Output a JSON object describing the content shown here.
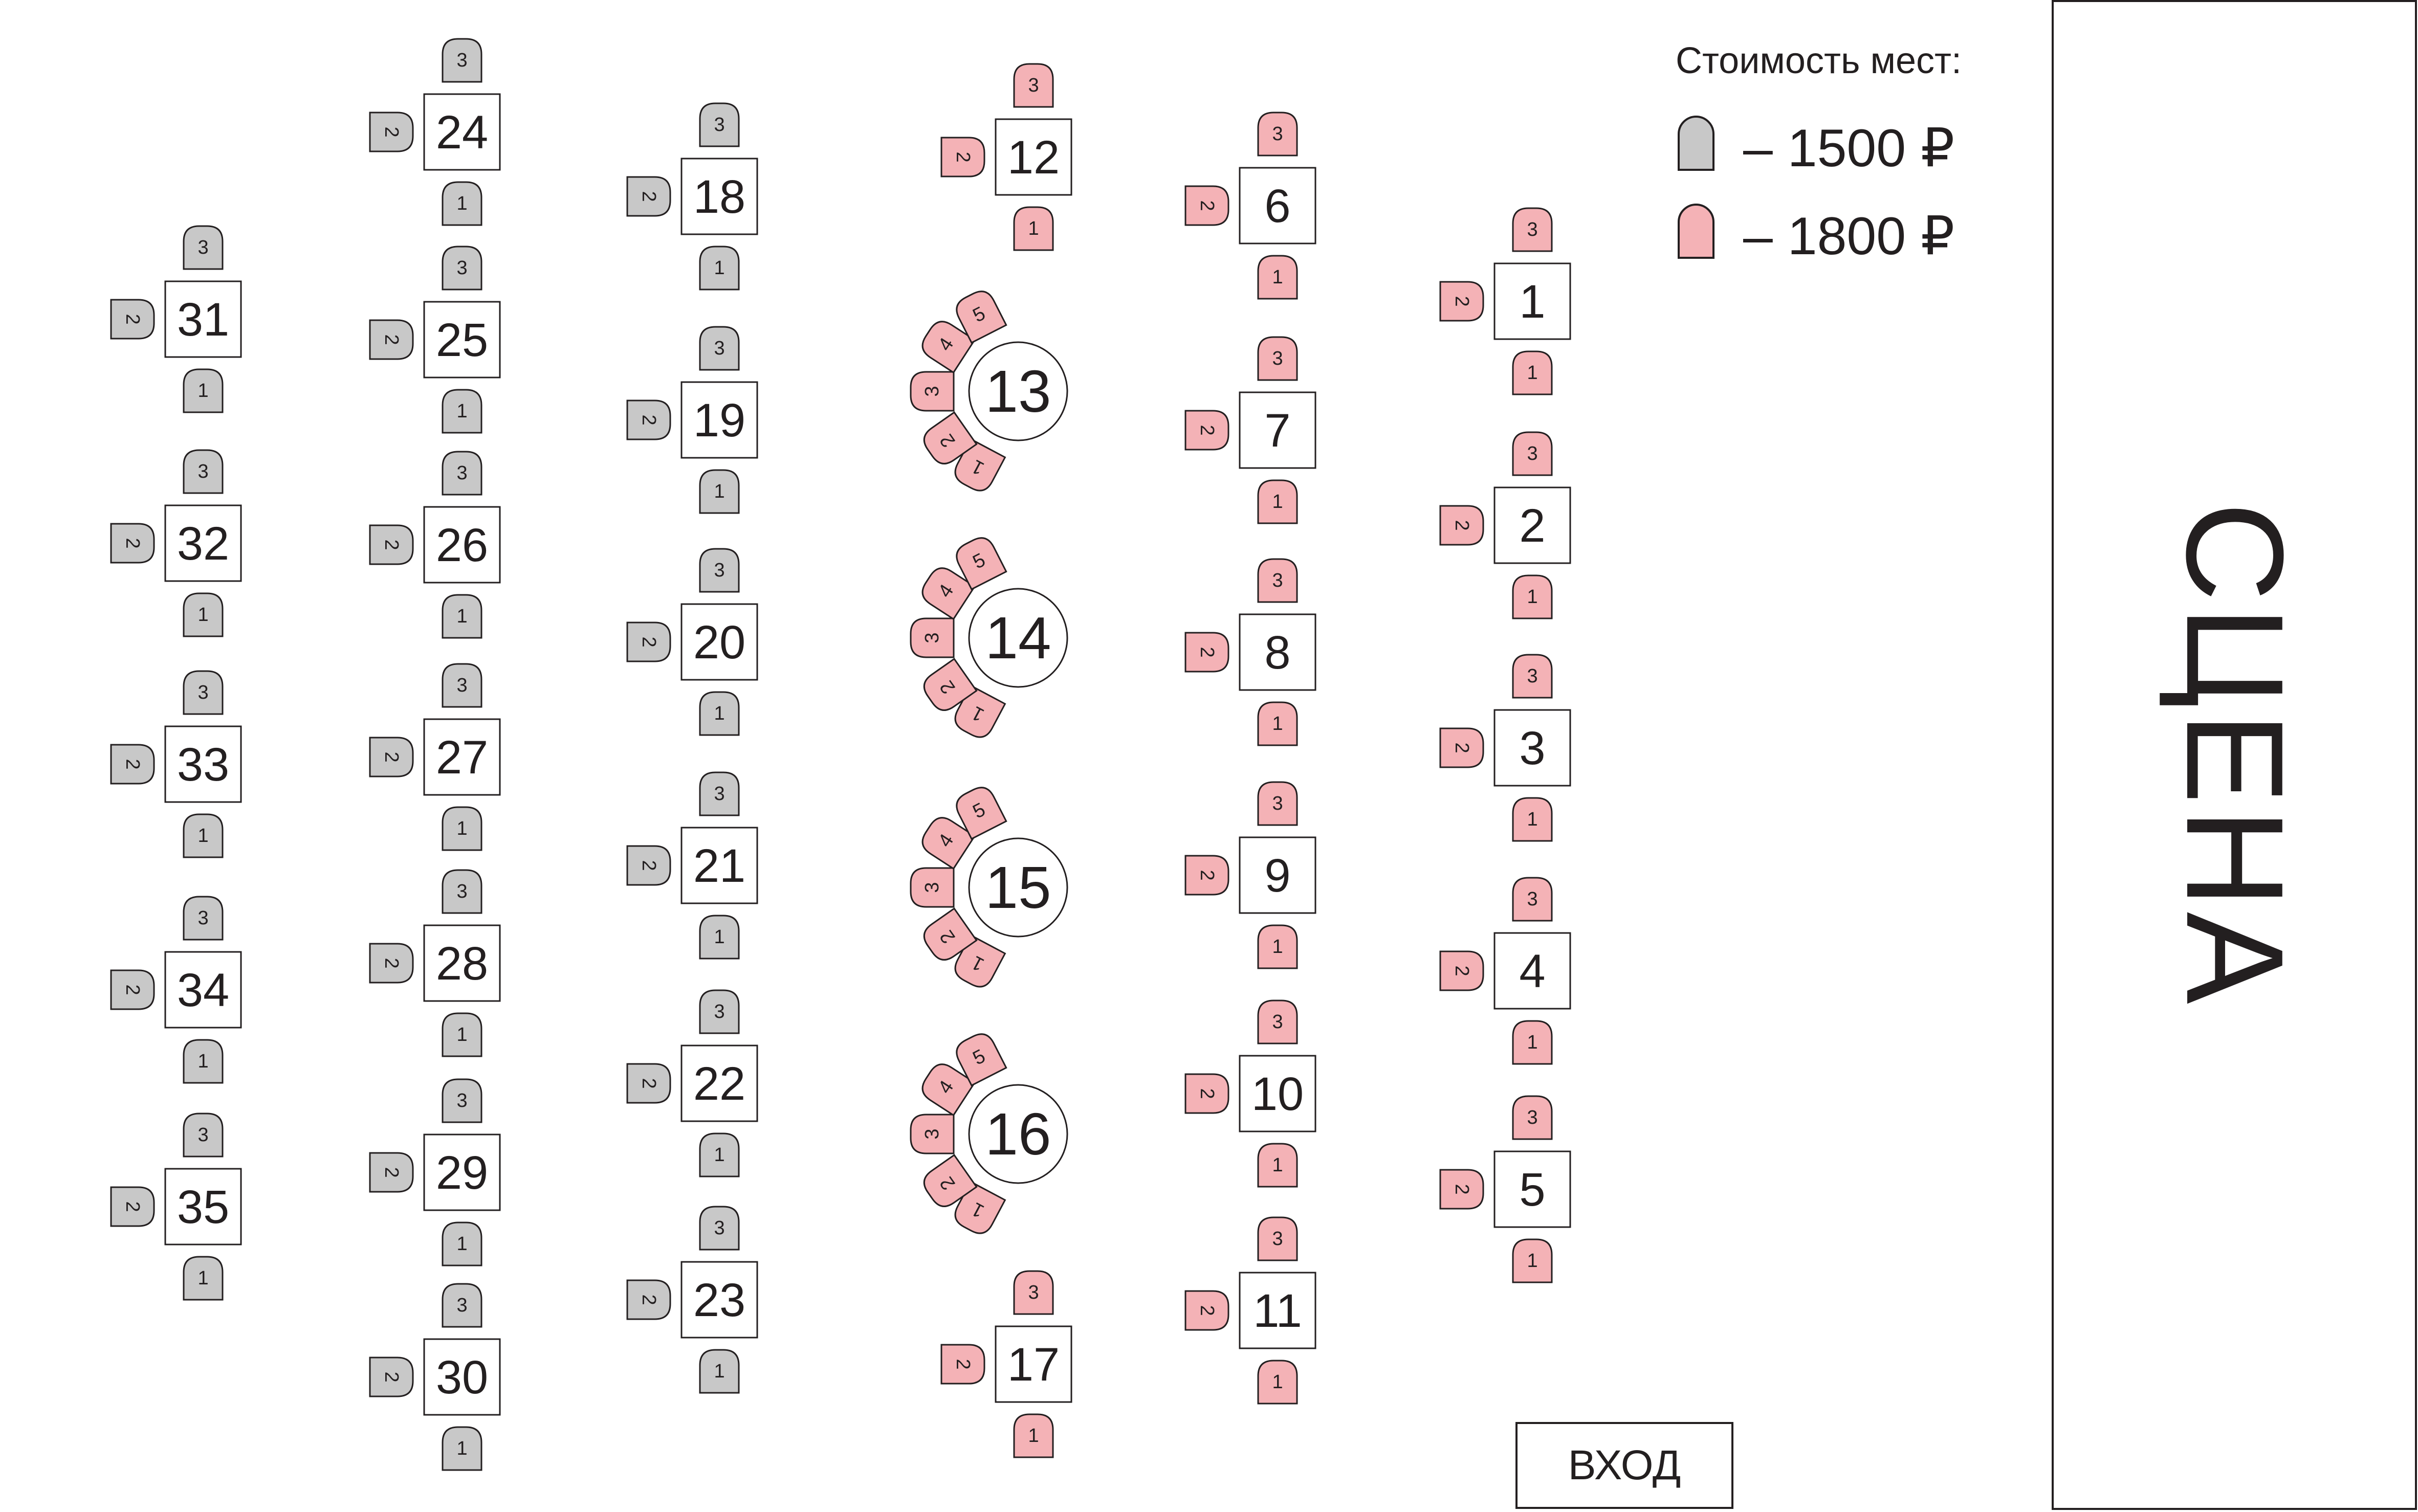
{
  "legend": {
    "title": "Стоимость мест:",
    "items": [
      {
        "price": "– 1500 ₽",
        "color": "#c8c8c8",
        "icon": "chair-gray-icon"
      },
      {
        "price": "– 1800 ₽",
        "color": "#f4b2b6",
        "icon": "chair-pink-icon"
      }
    ]
  },
  "stage": {
    "label": "СЦЕНА"
  },
  "entrance": {
    "label": "ВХОД"
  },
  "colors": {
    "standard": "#c8c8c8",
    "premium": "#f4b2b6",
    "outline": "#231f20"
  },
  "tables": [
    {
      "number": "1",
      "shape": "square",
      "price": "1800",
      "seats": [
        "1",
        "2",
        "3"
      ]
    },
    {
      "number": "2",
      "shape": "square",
      "price": "1800",
      "seats": [
        "1",
        "2",
        "3"
      ]
    },
    {
      "number": "3",
      "shape": "square",
      "price": "1800",
      "seats": [
        "1",
        "2",
        "3"
      ]
    },
    {
      "number": "4",
      "shape": "square",
      "price": "1800",
      "seats": [
        "1",
        "2",
        "3"
      ]
    },
    {
      "number": "5",
      "shape": "square",
      "price": "1800",
      "seats": [
        "1",
        "2",
        "3"
      ]
    },
    {
      "number": "6",
      "shape": "square",
      "price": "1800",
      "seats": [
        "1",
        "2",
        "3"
      ]
    },
    {
      "number": "7",
      "shape": "square",
      "price": "1800",
      "seats": [
        "1",
        "2",
        "3"
      ]
    },
    {
      "number": "8",
      "shape": "square",
      "price": "1800",
      "seats": [
        "1",
        "2",
        "3"
      ]
    },
    {
      "number": "9",
      "shape": "square",
      "price": "1800",
      "seats": [
        "1",
        "2",
        "3"
      ]
    },
    {
      "number": "10",
      "shape": "square",
      "price": "1800",
      "seats": [
        "1",
        "2",
        "3"
      ]
    },
    {
      "number": "11",
      "shape": "square",
      "price": "1800",
      "seats": [
        "1",
        "2",
        "3"
      ]
    },
    {
      "number": "12",
      "shape": "square",
      "price": "1800",
      "seats": [
        "1",
        "2",
        "3"
      ]
    },
    {
      "number": "13",
      "shape": "round",
      "price": "1800",
      "seats": [
        "1",
        "2",
        "3",
        "4",
        "5"
      ]
    },
    {
      "number": "14",
      "shape": "round",
      "price": "1800",
      "seats": [
        "1",
        "2",
        "3",
        "4",
        "5"
      ]
    },
    {
      "number": "15",
      "shape": "round",
      "price": "1800",
      "seats": [
        "1",
        "2",
        "3",
        "4",
        "5"
      ]
    },
    {
      "number": "16",
      "shape": "round",
      "price": "1800",
      "seats": [
        "1",
        "2",
        "3",
        "4",
        "5"
      ]
    },
    {
      "number": "17",
      "shape": "square",
      "price": "1800",
      "seats": [
        "1",
        "2",
        "3"
      ]
    },
    {
      "number": "18",
      "shape": "square",
      "price": "1500",
      "seats": [
        "1",
        "2",
        "3"
      ]
    },
    {
      "number": "19",
      "shape": "square",
      "price": "1500",
      "seats": [
        "1",
        "2",
        "3"
      ]
    },
    {
      "number": "20",
      "shape": "square",
      "price": "1500",
      "seats": [
        "1",
        "2",
        "3"
      ]
    },
    {
      "number": "21",
      "shape": "square",
      "price": "1500",
      "seats": [
        "1",
        "2",
        "3"
      ]
    },
    {
      "number": "22",
      "shape": "square",
      "price": "1500",
      "seats": [
        "1",
        "2",
        "3"
      ]
    },
    {
      "number": "23",
      "shape": "square",
      "price": "1500",
      "seats": [
        "1",
        "2",
        "3"
      ]
    },
    {
      "number": "24",
      "shape": "square",
      "price": "1500",
      "seats": [
        "1",
        "2",
        "3"
      ]
    },
    {
      "number": "25",
      "shape": "square",
      "price": "1500",
      "seats": [
        "1",
        "2",
        "3"
      ]
    },
    {
      "number": "26",
      "shape": "square",
      "price": "1500",
      "seats": [
        "1",
        "2",
        "3"
      ]
    },
    {
      "number": "27",
      "shape": "square",
      "price": "1500",
      "seats": [
        "1",
        "2",
        "3"
      ]
    },
    {
      "number": "28",
      "shape": "square",
      "price": "1500",
      "seats": [
        "1",
        "2",
        "3"
      ]
    },
    {
      "number": "29",
      "shape": "square",
      "price": "1500",
      "seats": [
        "1",
        "2",
        "3"
      ]
    },
    {
      "number": "30",
      "shape": "square",
      "price": "1500",
      "seats": [
        "1",
        "2",
        "3"
      ]
    },
    {
      "number": "31",
      "shape": "square",
      "price": "1500",
      "seats": [
        "1",
        "2",
        "3"
      ]
    },
    {
      "number": "32",
      "shape": "square",
      "price": "1500",
      "seats": [
        "1",
        "2",
        "3"
      ]
    },
    {
      "number": "33",
      "shape": "square",
      "price": "1500",
      "seats": [
        "1",
        "2",
        "3"
      ]
    },
    {
      "number": "34",
      "shape": "square",
      "price": "1500",
      "seats": [
        "1",
        "2",
        "3"
      ]
    },
    {
      "number": "35",
      "shape": "square",
      "price": "1500",
      "seats": [
        "1",
        "2",
        "3"
      ]
    }
  ]
}
